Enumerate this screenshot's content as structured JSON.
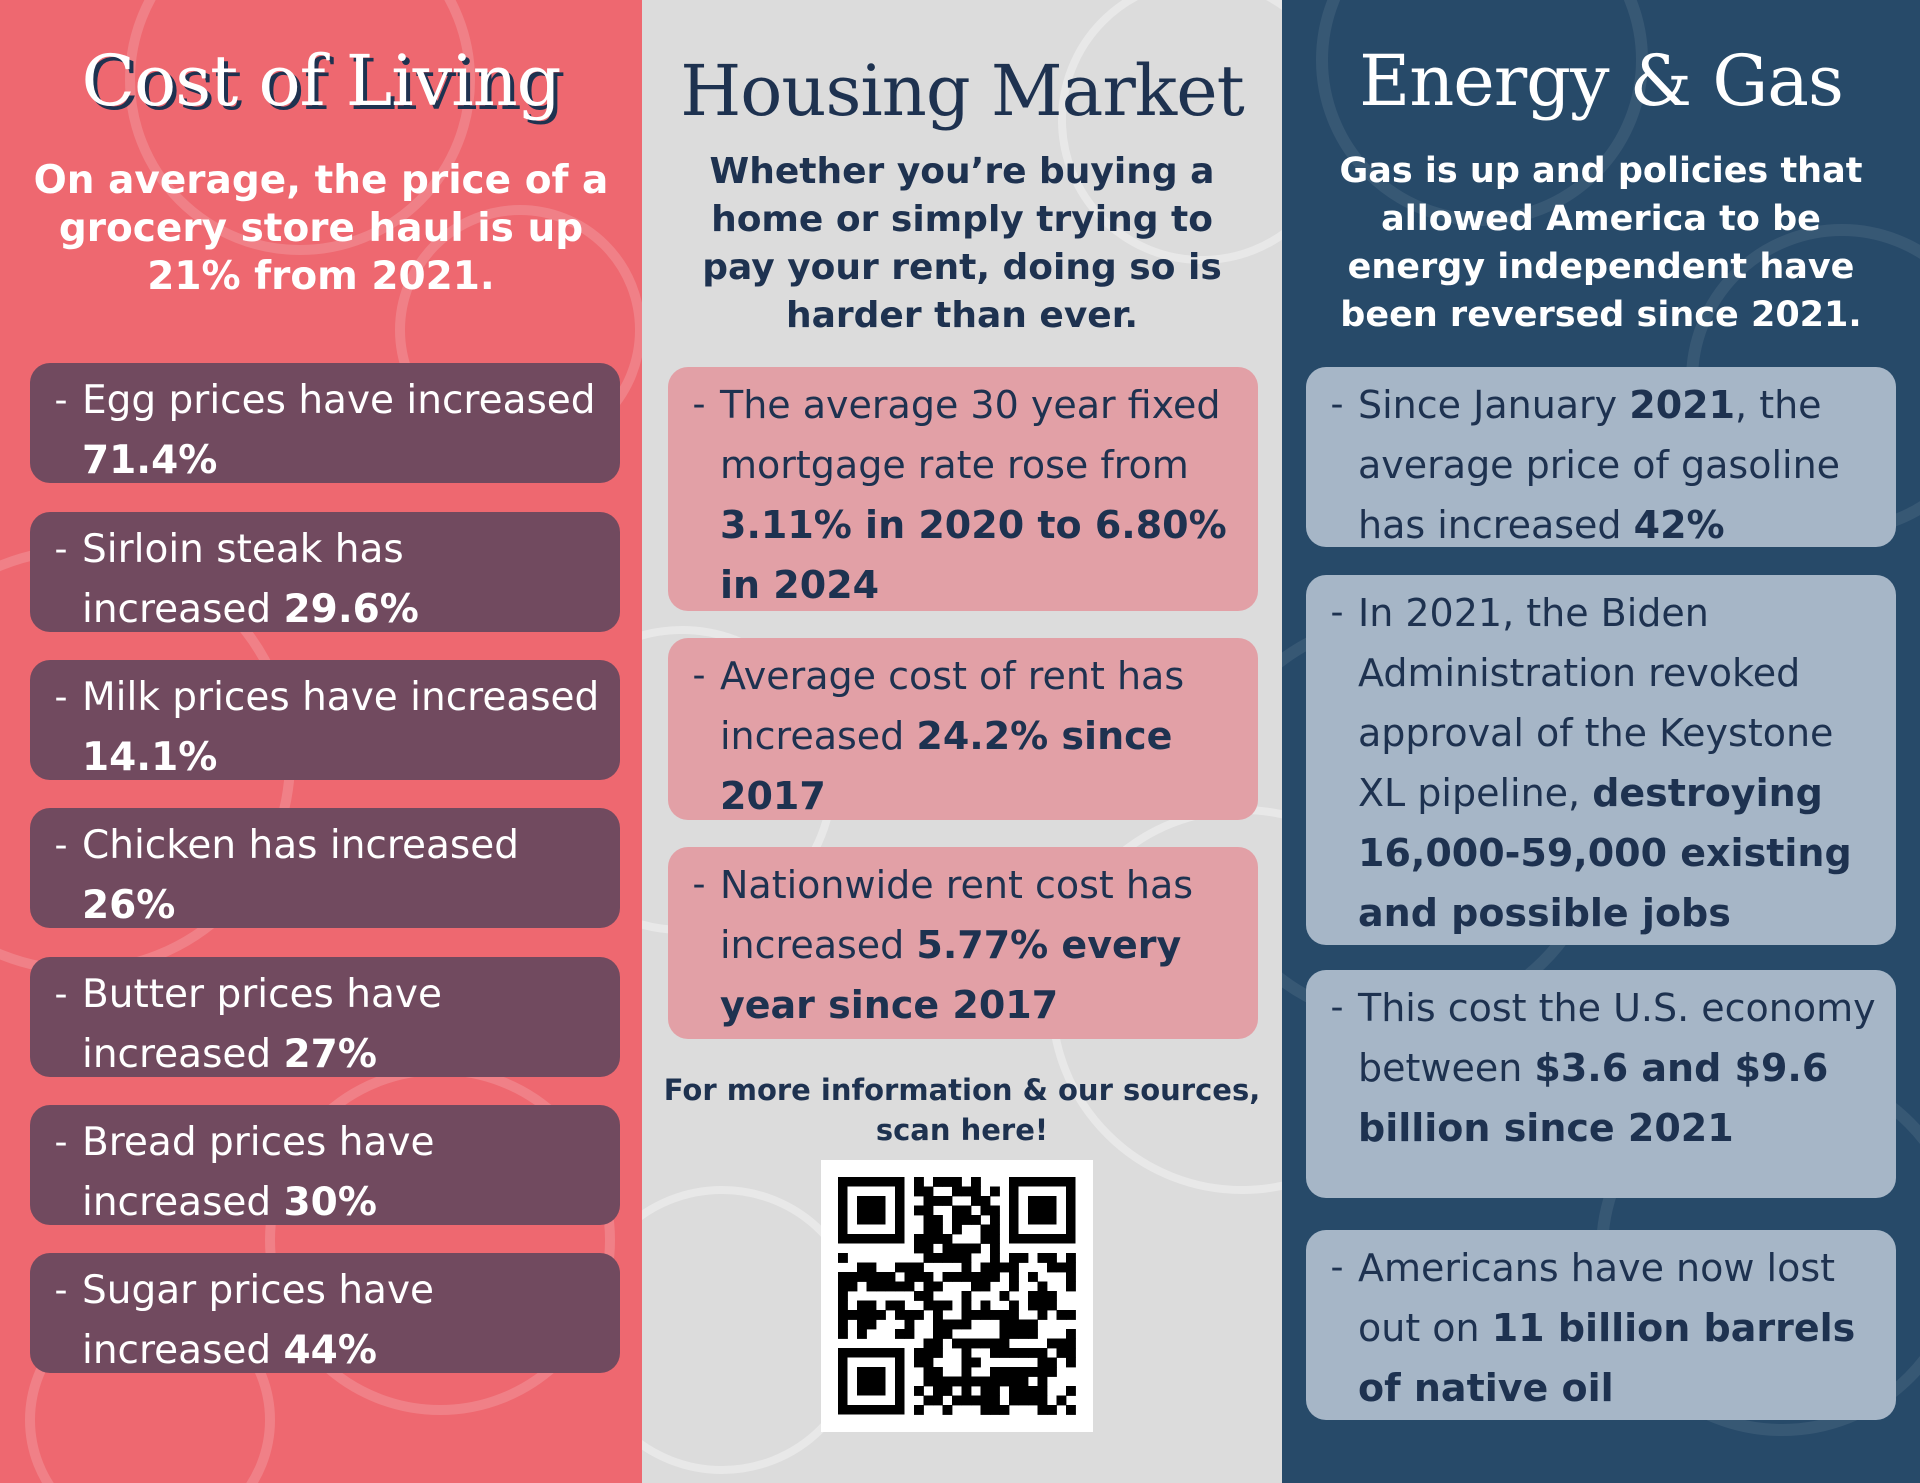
{
  "columns": {
    "cost_of_living": {
      "heading": "Cost of Living",
      "intro": "On average, the price of a grocery store haul is up 21% from 2021.",
      "items": [
        {
          "text": "Egg prices have increased ",
          "bold": "71.4%"
        },
        {
          "text": "Sirloin steak has increased ",
          "bold": "29.6%"
        },
        {
          "text": "Milk prices have increased ",
          "bold": "14.1%"
        },
        {
          "text": "Chicken has increased ",
          "bold": "26%"
        },
        {
          "text": "Butter prices have increased ",
          "bold": "27%"
        },
        {
          "text": "Bread prices have increased ",
          "bold": "30%"
        },
        {
          "text": "Sugar prices have increased ",
          "bold": "44%"
        }
      ]
    },
    "housing_market": {
      "heading": "Housing Market",
      "intro": "Whether you’re buying a home or simply trying to pay your rent, doing so is harder than ever.",
      "items": [
        {
          "text": "The average 30 year fixed mortgage rate rose from ",
          "bold": "3.11% in 2020 to 6.80% in 2024"
        },
        {
          "text": "Average cost of rent has increased ",
          "bold": "24.2% since 2017"
        },
        {
          "text": "Nationwide rent cost has increased ",
          "bold": "5.77% every year since 2017"
        }
      ],
      "qr_caption": "For more information & our sources, scan here!"
    },
    "energy_gas": {
      "heading": "Energy & Gas",
      "intro": "Gas is up and policies that allowed America to be energy independent have been reversed since 2021.",
      "items": [
        {
          "p1": "Since January ",
          "b1": "2021",
          "p2": ", the average price of gasoline has increased ",
          "b2": "42%"
        },
        {
          "text": "In 2021, the Biden Administration revoked approval of the Keystone XL pipeline, ",
          "bold": "destroying 16,000-59,000 existing and possible jobs"
        },
        {
          "text": "This cost the U.S. economy between ",
          "bold": "$3.6 and $9.6 billion since 2021"
        },
        {
          "text": "Americans have now lost out on ",
          "bold": "11 billion barrels of native oil"
        }
      ]
    }
  },
  "dash_glyph": "-",
  "colors": {
    "coral": "#ee6870",
    "plum": "#714a5f",
    "light_gray": "#dcdcdc",
    "pink": "#e2a0a6",
    "navy": "#274a69",
    "steel": "#a6b6c7",
    "ink": "#1e3250"
  }
}
